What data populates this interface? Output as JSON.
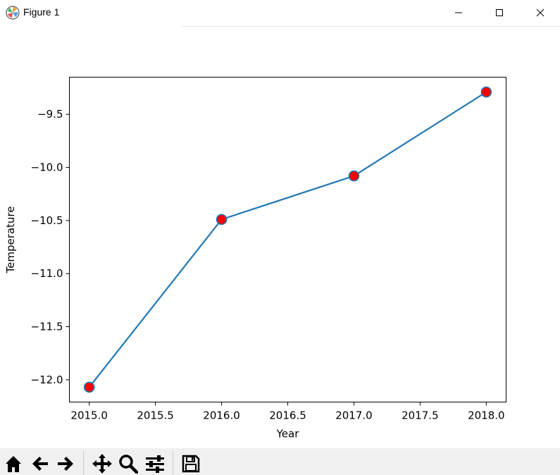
{
  "window": {
    "title": "Figure 1",
    "controls": [
      "minimize",
      "maximize",
      "close"
    ]
  },
  "toolbar": {
    "tools": [
      {
        "name": "home",
        "icon": "home-icon"
      },
      {
        "name": "back",
        "icon": "arrow-left-icon"
      },
      {
        "name": "forward",
        "icon": "arrow-right-icon"
      },
      {
        "name": "pan",
        "icon": "move-icon"
      },
      {
        "name": "zoom",
        "icon": "magnifier-icon"
      },
      {
        "name": "configure-subplots",
        "icon": "sliders-icon"
      },
      {
        "name": "save",
        "icon": "floppy-icon"
      }
    ]
  },
  "chart_data": {
    "type": "line",
    "xlabel": "Year",
    "ylabel": "Temperature",
    "x": [
      2015.0,
      2016.0,
      2017.0,
      2018.0
    ],
    "series": [
      {
        "values": [
          -12.07,
          -10.49,
          -10.08,
          -9.29
        ],
        "line_color": "#1f77b4",
        "marker": "circle",
        "marker_face_color": "#ff0000",
        "marker_edge_color": "#1f77b4"
      }
    ],
    "xlim": [
      2014.85,
      2018.15
    ],
    "ylim": [
      -12.21,
      -9.15
    ],
    "xticks": [
      "2015.0",
      "2015.5",
      "2016.0",
      "2016.5",
      "2017.0",
      "2017.5",
      "2018.0"
    ],
    "yticks": [
      "−9.5",
      "−10.0",
      "−10.5",
      "−11.0",
      "−11.5",
      "−12.0"
    ],
    "grid": false,
    "legend": false
  }
}
